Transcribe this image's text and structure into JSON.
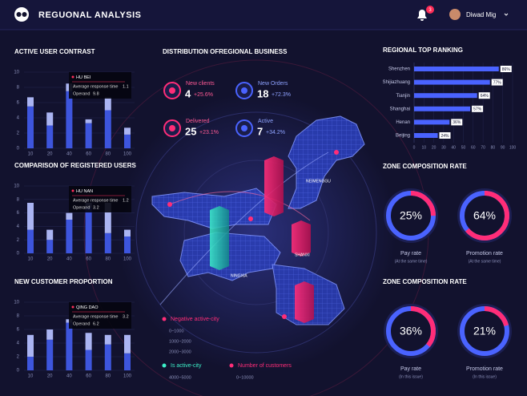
{
  "header": {
    "title": "REGUONAL ANALYSIS",
    "badge": 3,
    "user": "Diwad Mig"
  },
  "left_charts": [
    {
      "title": "ACTIVE USER CONTRAST",
      "categories": [
        10,
        20,
        40,
        60,
        80,
        100
      ],
      "ylim": [
        0,
        10
      ],
      "yticks": [
        0,
        2,
        4,
        6,
        8,
        10
      ],
      "series": [
        {
          "color": "#3d55dd",
          "values": [
            5.5,
            3,
            7.5,
            3.3,
            5,
            1.8
          ]
        },
        {
          "color": "#aab4f2",
          "values": [
            1.2,
            1.7,
            1,
            0.5,
            1.7,
            0.9
          ]
        }
      ],
      "tooltip": {
        "city": "HU BEI",
        "rows": [
          [
            "Average response time",
            1.1
          ],
          [
            "Operand",
            9.8
          ]
        ]
      }
    },
    {
      "title": "COMPARISON OF REGISTERED USERS",
      "categories": [
        10,
        20,
        40,
        60,
        80,
        100
      ],
      "ylim": [
        0,
        10
      ],
      "yticks": [
        0,
        2,
        4,
        6,
        8,
        10
      ],
      "series": [
        {
          "color": "#3d55dd",
          "values": [
            3.5,
            2,
            5,
            6.8,
            3,
            2.5
          ]
        },
        {
          "color": "#aab4f2",
          "values": [
            4,
            1.5,
            1,
            0.7,
            4.5,
            1
          ]
        }
      ],
      "tooltip": {
        "city": "HU NAN",
        "rows": [
          [
            "Average response time",
            1.2
          ],
          [
            "Operand",
            3.2
          ]
        ]
      }
    },
    {
      "title": "NEW CUSTOMER PROPORTION",
      "categories": [
        10,
        20,
        40,
        60,
        80,
        100
      ],
      "ylim": [
        0,
        10
      ],
      "yticks": [
        0,
        2,
        4,
        6,
        8,
        10
      ],
      "series": [
        {
          "color": "#3d55dd",
          "values": [
            2,
            4.5,
            7,
            3,
            3.8,
            2.5
          ]
        },
        {
          "color": "#aab4f2",
          "values": [
            3.2,
            1.5,
            0.5,
            2.5,
            1.4,
            2.7
          ]
        }
      ],
      "tooltip": {
        "city": "QING DAO",
        "rows": [
          [
            "Average response time",
            3.2
          ],
          [
            "Operand",
            6.2
          ]
        ]
      }
    }
  ],
  "business": {
    "title": "DISTRIBUTION OFREGIONAL BUSINESS",
    "stats": [
      {
        "label": "New clients",
        "value": 4,
        "change": "+25.6%"
      },
      {
        "label": "New Orders",
        "value": 18,
        "change": "+72.3%"
      },
      {
        "label": "Delivered",
        "value": 25,
        "change": "+23.1%"
      },
      {
        "label": "Active",
        "value": 7,
        "change": "+34.2%"
      }
    ],
    "map_labels": [
      "NEIMENGGU",
      "SHANXI",
      "NINGXIA"
    ],
    "legend": [
      {
        "label": "Negative active-city",
        "ranges": [
          "0~1000",
          "1000~2000",
          "2000~3000"
        ]
      },
      {
        "label": "Is active-city",
        "ranges": [
          "4000~5000"
        ]
      },
      {
        "label": "Number of customers",
        "ranges": [
          "0~10000"
        ]
      }
    ]
  },
  "ranking": {
    "title": "REGIONAL TOP RANKING",
    "categories": [
      "Shenzhen",
      "Shijiazhuang",
      "Tianjin",
      "Shanghai",
      "Henan",
      "Beijing"
    ],
    "values": [
      86,
      77,
      64,
      57,
      36,
      24
    ],
    "value_labels": [
      "86%",
      "77%",
      "64%",
      "57%",
      "36%",
      "24%"
    ],
    "xlim": [
      0,
      100
    ],
    "xticks": [
      0,
      10,
      20,
      30,
      40,
      50,
      60,
      70,
      80,
      90,
      100
    ]
  },
  "zones": [
    {
      "title": "ZONE COMPOSITION RATE",
      "items": [
        {
          "value": 25,
          "value_label": "25%",
          "label": "Pay rate",
          "note": "(At the same time)"
        },
        {
          "value": 64,
          "value_label": "64%",
          "label": "Promotion rate",
          "note": "(At the same time)"
        }
      ]
    },
    {
      "title": "ZONE COMPOSITION RATE",
      "items": [
        {
          "value": 36,
          "value_label": "36%",
          "label": "Pay rate",
          "note": "(In this issue)"
        },
        {
          "value": 21,
          "value_label": "21%",
          "label": "Promotion rate",
          "note": "(In this issue)"
        }
      ]
    }
  ]
}
